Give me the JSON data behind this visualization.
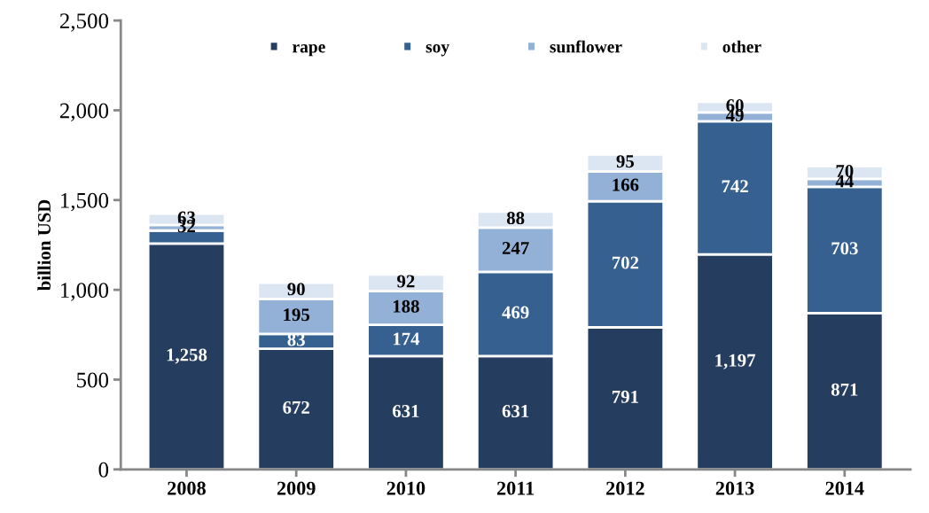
{
  "chart_data": {
    "type": "bar",
    "stacked": true,
    "ylabel": "billion USD",
    "categories": [
      "2008",
      "2009",
      "2010",
      "2011",
      "2012",
      "2013",
      "2014"
    ],
    "series": [
      {
        "name": "rape",
        "color": "#253d5e",
        "values": [
          1258,
          672,
          631,
          631,
          791,
          1197,
          871
        ],
        "value_labels": [
          "1,258",
          "672",
          "631",
          "631",
          "791",
          "1,197",
          "871"
        ]
      },
      {
        "name": "soy",
        "color": "#35608f",
        "values": [
          72,
          83,
          174,
          469,
          702,
          742,
          703
        ],
        "value_labels": [
          null,
          "83",
          "174",
          "469",
          "702",
          "742",
          "703"
        ]
      },
      {
        "name": "sunflower",
        "color": "#93b1d6",
        "values": [
          32,
          195,
          188,
          247,
          166,
          49,
          44
        ],
        "value_labels": [
          "32",
          "195",
          "188",
          "247",
          "166",
          "49",
          "44"
        ]
      },
      {
        "name": "other",
        "color": "#dce6f2",
        "values": [
          63,
          90,
          92,
          88,
          95,
          60,
          70
        ],
        "value_labels": [
          "63",
          "90",
          "92",
          "88",
          "95",
          "60",
          "70"
        ]
      }
    ],
    "ylim": [
      0,
      2500
    ],
    "yticks": [
      {
        "value": 0,
        "label": "0"
      },
      {
        "value": 500,
        "label": "500"
      },
      {
        "value": 1000,
        "label": "1,000"
      },
      {
        "value": 1500,
        "label": "1,500"
      },
      {
        "value": 2000,
        "label": "2,000"
      },
      {
        "value": 2500,
        "label": "2,500"
      }
    ],
    "legend": "top",
    "grid": false
  }
}
